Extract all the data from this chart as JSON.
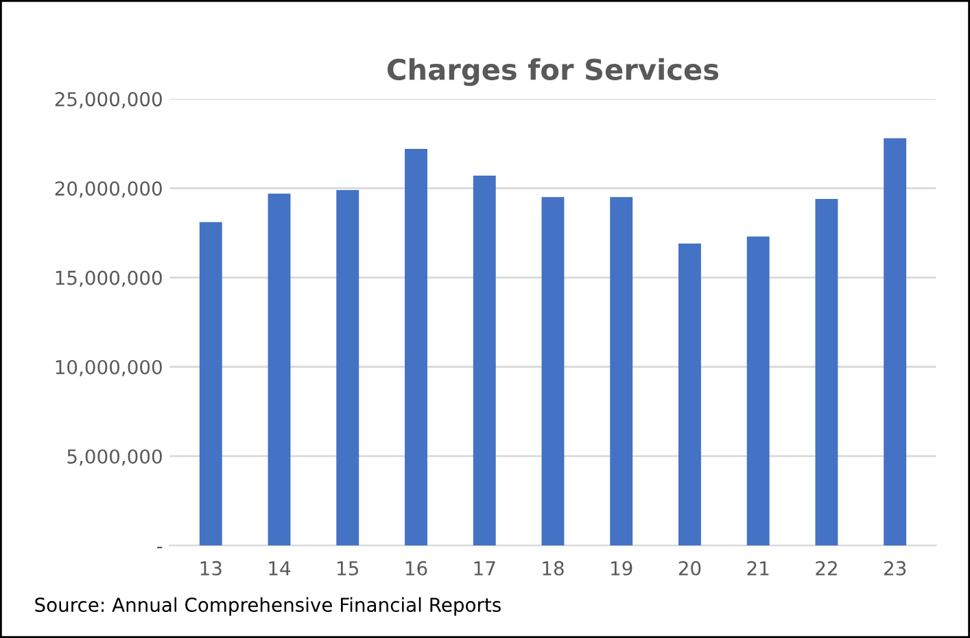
{
  "chart_data": {
    "type": "bar",
    "title": "Charges for Services",
    "categories": [
      "13",
      "14",
      "15",
      "16",
      "17",
      "18",
      "19",
      "20",
      "21",
      "22",
      "23"
    ],
    "values": [
      18100000,
      19700000,
      19900000,
      22200000,
      20700000,
      19500000,
      19500000,
      16900000,
      17300000,
      19400000,
      22800000
    ],
    "color": "#4472c4",
    "ylim": [
      0,
      25000000
    ],
    "yticks": [
      {
        "value": 0,
        "label": "-"
      },
      {
        "value": 5000000,
        "label": "5,000,000"
      },
      {
        "value": 10000000,
        "label": "10,000,000"
      },
      {
        "value": 15000000,
        "label": "15,000,000"
      },
      {
        "value": 20000000,
        "label": "20,000,000"
      },
      {
        "value": 25000000,
        "label": "25,000,000"
      }
    ],
    "grid": "y",
    "annotations": [
      "Source: Annual Comprehensive Financial Reports"
    ]
  }
}
